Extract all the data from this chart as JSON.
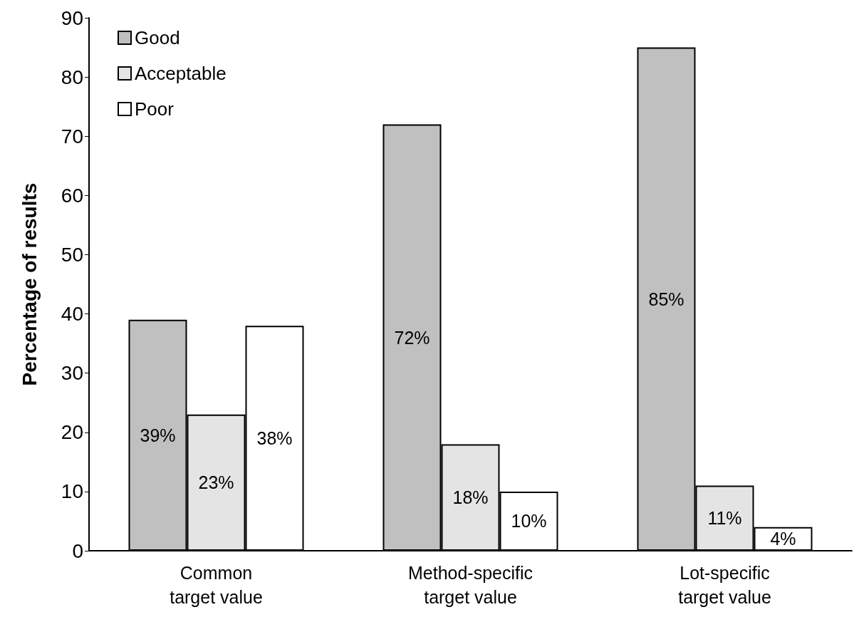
{
  "chart_data": {
    "type": "bar",
    "ylabel": "Percentage of results",
    "categories": [
      "Common\ntarget value",
      "Method-specific\ntarget value",
      "Lot-specific\ntarget value"
    ],
    "series": [
      {
        "name": "Good",
        "color": "#c0c0c0",
        "values": [
          39,
          72,
          85
        ],
        "value_labels": [
          "39%",
          "72%",
          "85%"
        ]
      },
      {
        "name": "Acceptable",
        "color": "#e4e4e4",
        "values": [
          23,
          18,
          11
        ],
        "value_labels": [
          "23%",
          "18%",
          "11%"
        ]
      },
      {
        "name": "Poor",
        "color": "#ffffff",
        "values": [
          38,
          10,
          4
        ],
        "value_labels": [
          "38%",
          "10%",
          "4%"
        ]
      }
    ],
    "ylim": [
      0,
      90
    ],
    "yticks": [
      0,
      10,
      20,
      30,
      40,
      50,
      60,
      70,
      80,
      90
    ],
    "grid": false,
    "legend": "top left"
  }
}
